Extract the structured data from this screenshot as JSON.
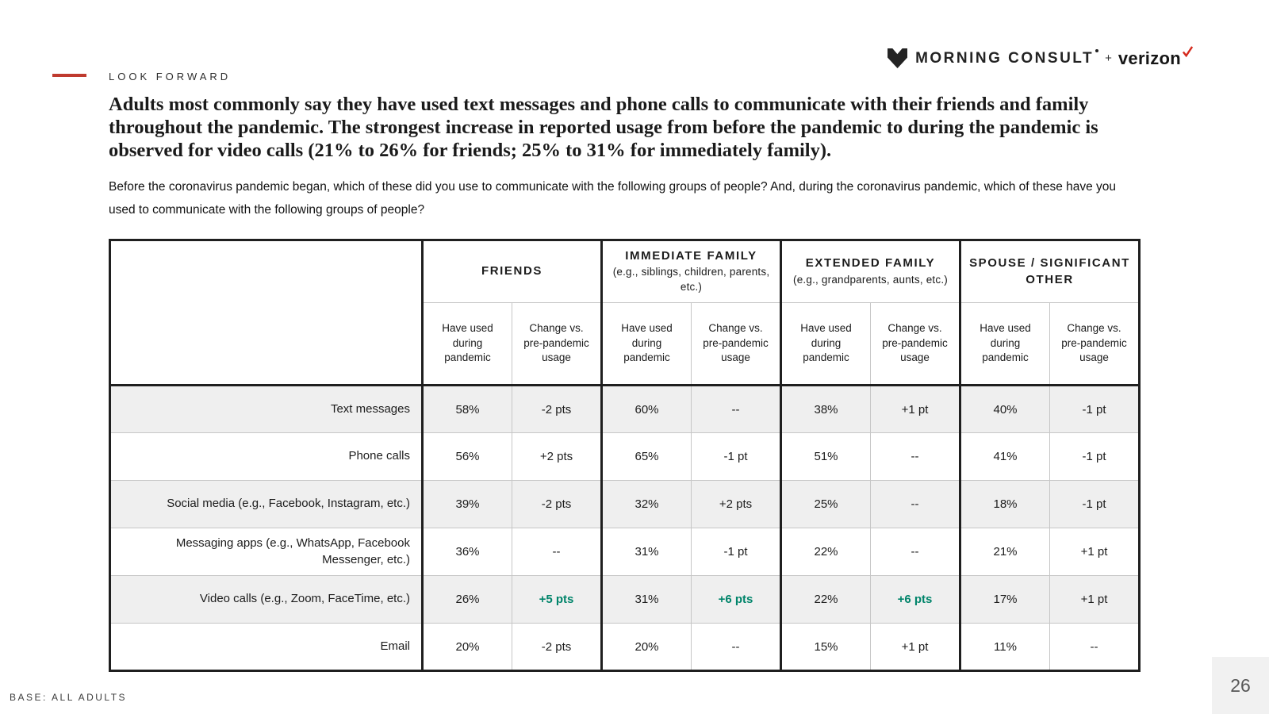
{
  "header": {
    "eyebrow": "LOOK FORWARD",
    "logo": {
      "morning_consult": "MORNING CONSULT",
      "plus": "+",
      "verizon": "verizon"
    }
  },
  "title": "Adults most commonly say they have used text messages and phone calls to communicate with their friends and family throughout the pandemic. The strongest increase in reported usage from before the pandemic to during the pandemic is observed for video calls (21% to 26% for friends; 25% to 31% for immediately family).",
  "question": "Before the coronavirus pandemic began, which of these did you use to communicate with the following groups of people? And, during the coronavirus pandemic, which of these have you used to communicate with the following groups of people?",
  "colors": {
    "accent_red": "#bf3a2e",
    "verizon_check_red": "#d52b1e",
    "positive_green": "#00846a",
    "stripe_gray": "#efefef",
    "border_black": "#1f1f1f",
    "border_gray": "#c6c6c6"
  },
  "chart_data": {
    "type": "table",
    "groups": [
      {
        "title": "FRIENDS",
        "subtitle": ""
      },
      {
        "title": "IMMEDIATE FAMILY",
        "subtitle": "(e.g., siblings, children, parents, etc.)"
      },
      {
        "title": "EXTENDED FAMILY",
        "subtitle": "(e.g., grandparents, aunts, etc.)"
      },
      {
        "title": "SPOUSE / SIGNIFICANT OTHER",
        "subtitle": ""
      }
    ],
    "sub_headers": [
      "Have used during pandemic",
      "Change vs. pre-pandemic usage"
    ],
    "rows": [
      {
        "label": "Text messages",
        "values": [
          "58%",
          "-2 pts",
          "60%",
          "--",
          "38%",
          "+1 pt",
          "40%",
          "-1 pt"
        ],
        "highlight": []
      },
      {
        "label": "Phone calls",
        "values": [
          "56%",
          "+2 pts",
          "65%",
          "-1 pt",
          "51%",
          "--",
          "41%",
          "-1 pt"
        ],
        "highlight": []
      },
      {
        "label": "Social media (e.g., Facebook, Instagram, etc.)",
        "values": [
          "39%",
          "-2 pts",
          "32%",
          "+2 pts",
          "25%",
          "--",
          "18%",
          "-1 pt"
        ],
        "highlight": []
      },
      {
        "label": "Messaging apps (e.g., WhatsApp, Facebook Messenger, etc.)",
        "values": [
          "36%",
          "--",
          "31%",
          "-1 pt",
          "22%",
          "--",
          "21%",
          "+1 pt"
        ],
        "highlight": []
      },
      {
        "label": "Video calls (e.g., Zoom, FaceTime, etc.)",
        "values": [
          "26%",
          "+5 pts",
          "31%",
          "+6 pts",
          "22%",
          "+6 pts",
          "17%",
          "+1 pt"
        ],
        "highlight": [
          1,
          3,
          5
        ]
      },
      {
        "label": "Email",
        "values": [
          "20%",
          "-2 pts",
          "20%",
          "--",
          "15%",
          "+1 pt",
          "11%",
          "--"
        ],
        "highlight": []
      }
    ]
  },
  "footer": {
    "base": "BASE: ALL ADULTS",
    "page": "26"
  }
}
